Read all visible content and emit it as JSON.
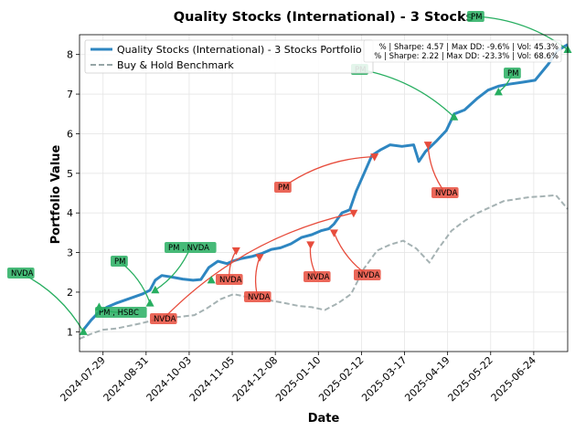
{
  "chart_data": {
    "type": "line",
    "title": "Quality Stocks (International) - 3 Stocks",
    "xlabel": "Date",
    "ylabel": "Portfolio Value",
    "x_range": [
      "2024-07-11",
      "2025-07-20"
    ],
    "ylim": [
      0.5,
      8.5
    ],
    "x_ticks": [
      "2024-07-29",
      "2024-08-31",
      "2024-10-03",
      "2024-11-05",
      "2024-12-08",
      "2025-01-10",
      "2025-02-12",
      "2025-03-17",
      "2025-04-19",
      "2025-05-22",
      "2025-06-24"
    ],
    "y_ticks": [
      1,
      2,
      3,
      4,
      5,
      6,
      7,
      8
    ],
    "grid": true,
    "legend_position": "top-left",
    "series": [
      {
        "name": "Quality Stocks (International) - 3 Stocks Portfolio",
        "color": "#2e86c1",
        "style": "solid",
        "points": [
          [
            "2024-07-14",
            1.05
          ],
          [
            "2024-07-20",
            1.3
          ],
          [
            "2024-07-26",
            1.5
          ],
          [
            "2024-08-01",
            1.62
          ],
          [
            "2024-08-08",
            1.72
          ],
          [
            "2024-08-15",
            1.8
          ],
          [
            "2024-08-22",
            1.88
          ],
          [
            "2024-08-28",
            1.95
          ],
          [
            "2024-09-03",
            2.05
          ],
          [
            "2024-09-07",
            2.3
          ],
          [
            "2024-09-12",
            2.42
          ],
          [
            "2024-09-20",
            2.38
          ],
          [
            "2024-09-28",
            2.33
          ],
          [
            "2024-10-06",
            2.3
          ],
          [
            "2024-10-12",
            2.32
          ],
          [
            "2024-10-18",
            2.62
          ],
          [
            "2024-10-25",
            2.78
          ],
          [
            "2024-11-01",
            2.72
          ],
          [
            "2024-11-05",
            2.78
          ],
          [
            "2024-11-12",
            2.85
          ],
          [
            "2024-11-20",
            2.9
          ],
          [
            "2024-11-28",
            2.98
          ],
          [
            "2024-12-05",
            3.08
          ],
          [
            "2024-12-12",
            3.12
          ],
          [
            "2024-12-20",
            3.22
          ],
          [
            "2024-12-28",
            3.38
          ],
          [
            "2025-01-05",
            3.45
          ],
          [
            "2025-01-12",
            3.55
          ],
          [
            "2025-01-18",
            3.6
          ],
          [
            "2025-01-22",
            3.72
          ],
          [
            "2025-01-28",
            4.0
          ],
          [
            "2025-02-03",
            4.08
          ],
          [
            "2025-02-08",
            4.55
          ],
          [
            "2025-02-14",
            5.0
          ],
          [
            "2025-02-20",
            5.45
          ],
          [
            "2025-02-27",
            5.6
          ],
          [
            "2025-03-06",
            5.72
          ],
          [
            "2025-03-15",
            5.68
          ],
          [
            "2025-03-24",
            5.72
          ],
          [
            "2025-03-28",
            5.3
          ],
          [
            "2025-04-02",
            5.55
          ],
          [
            "2025-04-10",
            5.8
          ],
          [
            "2025-04-18",
            6.08
          ],
          [
            "2025-04-24",
            6.5
          ],
          [
            "2025-05-02",
            6.6
          ],
          [
            "2025-05-12",
            6.9
          ],
          [
            "2025-05-20",
            7.1
          ],
          [
            "2025-05-28",
            7.2
          ],
          [
            "2025-06-05",
            7.25
          ],
          [
            "2025-06-15",
            7.3
          ],
          [
            "2025-06-25",
            7.35
          ],
          [
            "2025-07-05",
            7.75
          ],
          [
            "2025-07-12",
            8.1
          ],
          [
            "2025-07-20",
            8.25
          ]
        ]
      },
      {
        "name": "Buy & Hold Benchmark",
        "color": "#95a5a6",
        "style": "dashed",
        "points": [
          [
            "2024-07-11",
            0.82
          ],
          [
            "2024-07-20",
            0.95
          ],
          [
            "2024-07-29",
            1.05
          ],
          [
            "2024-08-08",
            1.08
          ],
          [
            "2024-08-18",
            1.15
          ],
          [
            "2024-08-28",
            1.22
          ],
          [
            "2024-09-07",
            1.3
          ],
          [
            "2024-09-17",
            1.35
          ],
          [
            "2024-09-27",
            1.38
          ],
          [
            "2024-10-07",
            1.42
          ],
          [
            "2024-10-17",
            1.6
          ],
          [
            "2024-10-27",
            1.82
          ],
          [
            "2024-11-06",
            1.95
          ],
          [
            "2024-11-16",
            1.88
          ],
          [
            "2024-11-26",
            1.85
          ],
          [
            "2024-12-06",
            1.78
          ],
          [
            "2024-12-16",
            1.72
          ],
          [
            "2024-12-26",
            1.65
          ],
          [
            "2025-01-05",
            1.62
          ],
          [
            "2025-01-15",
            1.55
          ],
          [
            "2025-01-25",
            1.72
          ],
          [
            "2025-02-04",
            1.95
          ],
          [
            "2025-02-14",
            2.6
          ],
          [
            "2025-02-24",
            3.05
          ],
          [
            "2025-03-06",
            3.2
          ],
          [
            "2025-03-16",
            3.3
          ],
          [
            "2025-03-26",
            3.1
          ],
          [
            "2025-04-05",
            2.75
          ],
          [
            "2025-04-12",
            3.1
          ],
          [
            "2025-04-22",
            3.55
          ],
          [
            "2025-05-02",
            3.8
          ],
          [
            "2025-05-12",
            4.0
          ],
          [
            "2025-05-22",
            4.15
          ],
          [
            "2025-06-01",
            4.3
          ],
          [
            "2025-06-11",
            4.35
          ],
          [
            "2025-06-21",
            4.4
          ],
          [
            "2025-07-01",
            4.42
          ],
          [
            "2025-07-11",
            4.45
          ],
          [
            "2025-07-20",
            4.1
          ]
        ]
      }
    ],
    "stats_box": {
      "lines": [
        "% | Sharpe: 4.57 | Max DD: -9.6% | Vol: 45.3%",
        "% | Sharpe: 2.22 | Max DD: -23.3% | Vol: 68.6%"
      ]
    },
    "buy_color": "#27ae60",
    "sell_color": "#e74c3c",
    "buy_trades": [
      {
        "date": "2024-07-14",
        "value": 1.0,
        "label": "NVDA"
      },
      {
        "date": "2024-07-26",
        "value": 1.62,
        "label": "PM , HSBC"
      },
      {
        "date": "2024-09-03",
        "value": 1.72,
        "label": "PM"
      },
      {
        "date": "2024-09-07",
        "value": 2.05,
        "label": "PM , NVDA"
      },
      {
        "date": "2024-10-20",
        "value": 2.3,
        "label": ""
      },
      {
        "date": "2025-04-24",
        "value": 6.42,
        "label": "PM"
      },
      {
        "date": "2025-05-28",
        "value": 7.05,
        "label": "PM"
      },
      {
        "date": "2025-07-20",
        "value": 8.12,
        "label": "PM"
      }
    ],
    "sell_trades": [
      {
        "date": "2024-11-08",
        "value": 3.05,
        "label": "NVDA"
      },
      {
        "date": "2024-11-26",
        "value": 2.88,
        "label": "NVDA"
      },
      {
        "date": "2025-01-04",
        "value": 3.2,
        "label": "NVDA"
      },
      {
        "date": "2025-01-22",
        "value": 3.5,
        "label": "NVDA"
      },
      {
        "date": "2025-02-06",
        "value": 4.0,
        "label": "NVDA"
      },
      {
        "date": "2025-02-22",
        "value": 5.42,
        "label": "PM"
      },
      {
        "date": "2025-04-04",
        "value": 5.72,
        "label": "NVDA"
      }
    ]
  }
}
